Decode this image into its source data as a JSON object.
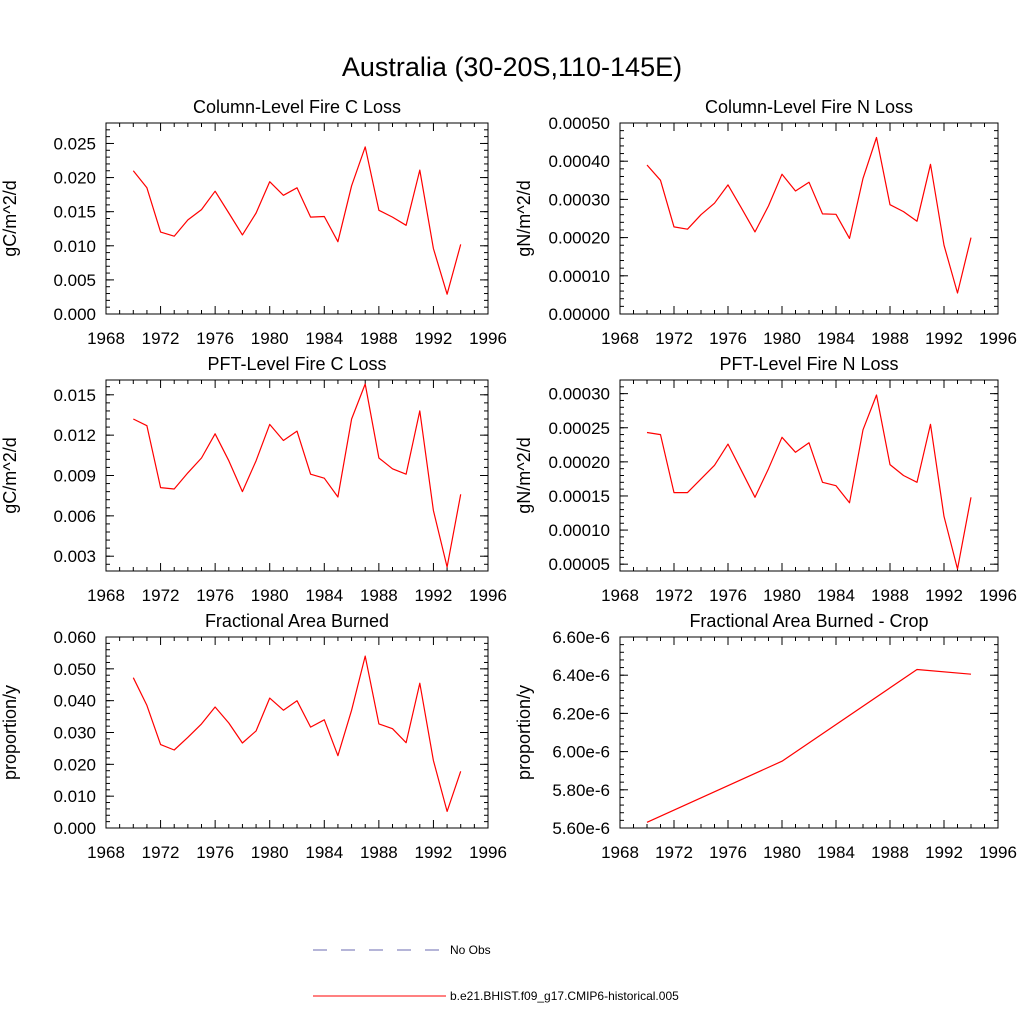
{
  "figure": {
    "title": "Australia (30-20S,110-145E)"
  },
  "legend": {
    "items": [
      {
        "label": "No Obs",
        "color": "#6b6bb0",
        "style": "dashed"
      },
      {
        "label": "b.e21.BHIST.f09_g17.CMIP6-historical.005",
        "color": "#ff0000",
        "style": "solid"
      }
    ]
  },
  "chart_data": [
    {
      "type": "line",
      "title": "Column-Level Fire C Loss",
      "xlabel": "",
      "ylabel": "gC/m^2/d",
      "xlim": [
        1968,
        1996
      ],
      "ylim": [
        0,
        0.028
      ],
      "xticks": [
        "1968",
        "1972",
        "1976",
        "1980",
        "1984",
        "1988",
        "1992",
        "1996"
      ],
      "yticks": [
        "0.000",
        "0.005",
        "0.010",
        "0.015",
        "0.020",
        "0.025"
      ],
      "ytick_values": [
        0,
        0.005,
        0.01,
        0.015,
        0.02,
        0.025
      ],
      "grid": false,
      "series": [
        {
          "color": "#ff0000",
          "x": [
            1970,
            1971,
            1972,
            1973,
            1974,
            1975,
            1976,
            1977,
            1978,
            1979,
            1980,
            1981,
            1982,
            1983,
            1984,
            1985,
            1986,
            1987,
            1988,
            1989,
            1990,
            1991,
            1992,
            1993,
            1994
          ],
          "y": [
            0.021,
            0.0185,
            0.012,
            0.0114,
            0.0138,
            0.0153,
            0.018,
            0.0148,
            0.0116,
            0.0148,
            0.0194,
            0.0174,
            0.0185,
            0.0142,
            0.0143,
            0.0106,
            0.0188,
            0.0245,
            0.0152,
            0.0142,
            0.013,
            0.0211,
            0.0096,
            0.0029,
            0.0102
          ]
        }
      ]
    },
    {
      "type": "line",
      "title": "Column-Level Fire N Loss",
      "xlabel": "",
      "ylabel": "gN/m^2/d",
      "xlim": [
        1968,
        1996
      ],
      "ylim": [
        0,
        0.0005
      ],
      "xticks": [
        "1968",
        "1972",
        "1976",
        "1980",
        "1984",
        "1988",
        "1992",
        "1996"
      ],
      "yticks": [
        "0.00000",
        "0.00010",
        "0.00020",
        "0.00030",
        "0.00040",
        "0.00050"
      ],
      "ytick_values": [
        0,
        0.0001,
        0.0002,
        0.0003,
        0.0004,
        0.0005
      ],
      "grid": false,
      "series": [
        {
          "color": "#ff0000",
          "x": [
            1970,
            1971,
            1972,
            1973,
            1974,
            1975,
            1976,
            1977,
            1978,
            1979,
            1980,
            1981,
            1982,
            1983,
            1984,
            1985,
            1986,
            1987,
            1988,
            1989,
            1990,
            1991,
            1992,
            1993,
            1994
          ],
          "y": [
            0.00039,
            0.00035,
            0.000228,
            0.000222,
            0.00026,
            0.00029,
            0.000338,
            0.000277,
            0.000215,
            0.000283,
            0.000366,
            0.000322,
            0.000345,
            0.000262,
            0.000261,
            0.000198,
            0.000355,
            0.000462,
            0.000286,
            0.000268,
            0.000243,
            0.000392,
            0.00018,
            5.5e-05,
            0.0002
          ]
        }
      ]
    },
    {
      "type": "line",
      "title": "PFT-Level Fire C Loss",
      "xlabel": "",
      "ylabel": "gC/m^2/d",
      "xlim": [
        1968,
        1996
      ],
      "ylim": [
        0.0019,
        0.0161
      ],
      "xticks": [
        "1968",
        "1972",
        "1976",
        "1980",
        "1984",
        "1988",
        "1992",
        "1996"
      ],
      "yticks": [
        "0.003",
        "0.006",
        "0.009",
        "0.012",
        "0.015"
      ],
      "ytick_values": [
        0.003,
        0.006,
        0.009,
        0.012,
        0.015
      ],
      "grid": false,
      "series": [
        {
          "color": "#ff0000",
          "x": [
            1970,
            1971,
            1972,
            1973,
            1974,
            1975,
            1976,
            1977,
            1978,
            1979,
            1980,
            1981,
            1982,
            1983,
            1984,
            1985,
            1986,
            1987,
            1988,
            1989,
            1990,
            1991,
            1992,
            1993,
            1994
          ],
          "y": [
            0.0132,
            0.0127,
            0.0081,
            0.008,
            0.0092,
            0.0103,
            0.0121,
            0.0101,
            0.0078,
            0.0101,
            0.0128,
            0.0116,
            0.0123,
            0.0091,
            0.0088,
            0.0074,
            0.0132,
            0.0158,
            0.0103,
            0.0095,
            0.0091,
            0.0138,
            0.0064,
            0.0022,
            0.0076
          ]
        }
      ]
    },
    {
      "type": "line",
      "title": "PFT-Level Fire N Loss",
      "xlabel": "",
      "ylabel": "gN/m^2/d",
      "xlim": [
        1968,
        1996
      ],
      "ylim": [
        4e-05,
        0.00032
      ],
      "xticks": [
        "1968",
        "1972",
        "1976",
        "1980",
        "1984",
        "1988",
        "1992",
        "1996"
      ],
      "yticks": [
        "0.00005",
        "0.00010",
        "0.00015",
        "0.00020",
        "0.00025",
        "0.00030"
      ],
      "ytick_values": [
        5e-05,
        0.0001,
        0.00015,
        0.0002,
        0.00025,
        0.0003
      ],
      "grid": false,
      "series": [
        {
          "color": "#ff0000",
          "x": [
            1970,
            1971,
            1972,
            1973,
            1974,
            1975,
            1976,
            1977,
            1978,
            1979,
            1980,
            1981,
            1982,
            1983,
            1984,
            1985,
            1986,
            1987,
            1988,
            1989,
            1990,
            1991,
            1992,
            1993,
            1994
          ],
          "y": [
            0.000243,
            0.00024,
            0.000155,
            0.000155,
            0.000175,
            0.000195,
            0.000226,
            0.000187,
            0.000148,
            0.00019,
            0.000236,
            0.000214,
            0.000228,
            0.00017,
            0.000165,
            0.00014,
            0.000247,
            0.000298,
            0.000196,
            0.00018,
            0.00017,
            0.000255,
            0.00012,
            4.3e-05,
            0.000148
          ]
        }
      ]
    },
    {
      "type": "line",
      "title": "Fractional Area Burned",
      "xlabel": "",
      "ylabel": "proportion/y",
      "xlim": [
        1968,
        1996
      ],
      "ylim": [
        0,
        0.06
      ],
      "xticks": [
        "1968",
        "1972",
        "1976",
        "1980",
        "1984",
        "1988",
        "1992",
        "1996"
      ],
      "yticks": [
        "0.000",
        "0.010",
        "0.020",
        "0.030",
        "0.040",
        "0.050",
        "0.060"
      ],
      "ytick_values": [
        0,
        0.01,
        0.02,
        0.03,
        0.04,
        0.05,
        0.06
      ],
      "grid": false,
      "series": [
        {
          "color": "#ff0000",
          "x": [
            1970,
            1971,
            1972,
            1973,
            1974,
            1975,
            1976,
            1977,
            1978,
            1979,
            1980,
            1981,
            1982,
            1983,
            1984,
            1985,
            1986,
            1987,
            1988,
            1989,
            1990,
            1991,
            1992,
            1993,
            1994
          ],
          "y": [
            0.0472,
            0.0385,
            0.0262,
            0.0245,
            0.0285,
            0.0327,
            0.038,
            0.033,
            0.0267,
            0.0305,
            0.0408,
            0.037,
            0.04,
            0.0317,
            0.034,
            0.0227,
            0.037,
            0.054,
            0.0327,
            0.0312,
            0.0268,
            0.0455,
            0.0212,
            0.0052,
            0.0178
          ]
        }
      ]
    },
    {
      "type": "line",
      "title": "Fractional Area Burned - Crop",
      "xlabel": "",
      "ylabel": "proportion/y",
      "xlim": [
        1968,
        1996
      ],
      "ylim": [
        5.6e-06,
        6.6e-06
      ],
      "xticks": [
        "1968",
        "1972",
        "1976",
        "1980",
        "1984",
        "1988",
        "1992",
        "1996"
      ],
      "yticks": [
        "5.60e-6",
        "5.80e-6",
        "6.00e-6",
        "6.20e-6",
        "6.40e-6",
        "6.60e-6"
      ],
      "ytick_values": [
        5.6e-06,
        5.8e-06,
        6e-06,
        6.2e-06,
        6.4e-06,
        6.6e-06
      ],
      "grid": false,
      "series": [
        {
          "color": "#ff0000",
          "x": [
            1970,
            1980,
            1990,
            1994
          ],
          "y": [
            5.63e-06,
            5.95e-06,
            6.43e-06,
            6.405e-06
          ]
        }
      ]
    }
  ]
}
